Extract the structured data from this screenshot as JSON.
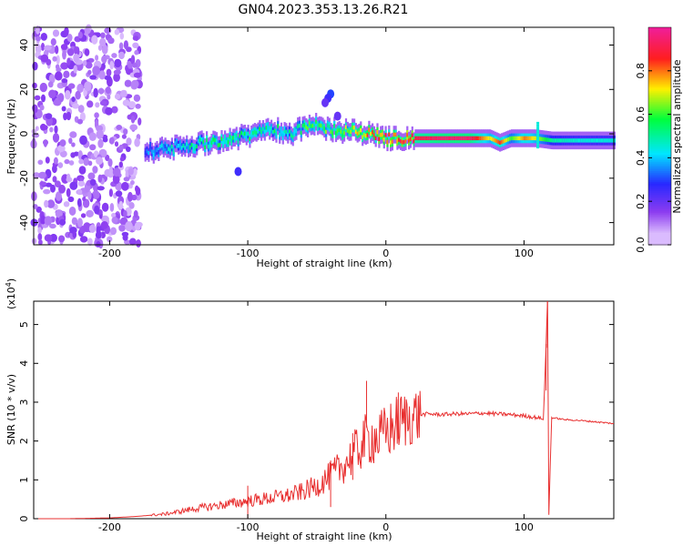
{
  "title": "GN04.2023.353.13.26.R21",
  "colors": {
    "line": "#e83030",
    "axes": "#000000",
    "background": "#ffffff"
  },
  "chart_data": [
    {
      "type": "heatmap",
      "title": "GN04.2023.353.13.26.R21",
      "xlabel": "Height of straight line (km)",
      "ylabel": "Frequency (Hz)",
      "xlim": [
        -255,
        165
      ],
      "ylim": [
        -50,
        48
      ],
      "x_ticks": [
        -200,
        -100,
        0,
        100
      ],
      "y_ticks": [
        40,
        20,
        0,
        -20,
        -40
      ],
      "grid": false,
      "colorbar": {
        "label": "Normalized spectral amplitude",
        "range": [
          0.0,
          1.0
        ],
        "ticks": [
          "0.0",
          "0.2",
          "0.4",
          "0.6",
          "0.8"
        ],
        "tick_values": [
          0.0,
          0.2,
          0.4,
          0.6,
          0.8
        ],
        "colormap": "rainbow (white → violet → blue → cyan → green → yellow → red → magenta)"
      },
      "ridge": [
        {
          "x": -175,
          "y": -8,
          "amp": 0.3
        },
        {
          "x": -150,
          "y": -6,
          "amp": 0.45
        },
        {
          "x": -120,
          "y": -3,
          "amp": 0.5
        },
        {
          "x": -100,
          "y": -1,
          "amp": 0.5
        },
        {
          "x": -85,
          "y": 3,
          "amp": 0.5
        },
        {
          "x": -70,
          "y": 0,
          "amp": 0.5
        },
        {
          "x": -55,
          "y": 4,
          "amp": 0.55
        },
        {
          "x": -40,
          "y": 2,
          "amp": 0.6
        },
        {
          "x": -25,
          "y": 1,
          "amp": 0.65
        },
        {
          "x": -10,
          "y": 0,
          "amp": 0.8
        },
        {
          "x": 0,
          "y": -2,
          "amp": 0.8
        },
        {
          "x": 20,
          "y": -2,
          "amp": 0.9
        },
        {
          "x": 40,
          "y": -2,
          "amp": 0.95
        },
        {
          "x": 60,
          "y": -2,
          "amp": 0.95
        },
        {
          "x": 75,
          "y": -2,
          "amp": 0.7
        },
        {
          "x": 82,
          "y": -4,
          "amp": 0.85
        },
        {
          "x": 90,
          "y": -2,
          "amp": 0.6
        },
        {
          "x": 100,
          "y": -2,
          "amp": 0.8
        },
        {
          "x": 108,
          "y": -2,
          "amp": 0.7
        },
        {
          "x": 120,
          "y": -3,
          "amp": 0.5
        },
        {
          "x": 140,
          "y": -3,
          "amp": 0.45
        },
        {
          "x": 165,
          "y": -3,
          "amp": 0.45
        }
      ]
    },
    {
      "type": "line",
      "xlabel": "Height of straight line (km)",
      "ylabel": "SNR (10 * v/v)",
      "y_multiplier_label": "(x10",
      "y_multiplier_exp": "4",
      "xlim": [
        -255,
        165
      ],
      "ylim": [
        0,
        5.6
      ],
      "x_ticks": [
        -200,
        -100,
        0,
        100
      ],
      "y_ticks": [
        0,
        1,
        2,
        3,
        4,
        5
      ],
      "grid": false,
      "series": [
        {
          "color": "#e83030",
          "x": [
            -255,
            -230,
            -200,
            -180,
            -160,
            -150,
            -140,
            -130,
            -120,
            -110,
            -100,
            -90,
            -80,
            -70,
            -60,
            -50,
            -40,
            -30,
            -20,
            -15,
            -10,
            -5,
            0,
            10,
            20,
            30,
            40,
            50,
            60,
            70,
            80,
            90,
            100,
            110,
            114,
            116,
            117,
            118,
            120,
            130,
            140,
            150,
            165
          ],
          "y": [
            0.0,
            0.0,
            0.02,
            0.06,
            0.12,
            0.18,
            0.25,
            0.3,
            0.35,
            0.4,
            0.45,
            0.5,
            0.55,
            0.6,
            0.7,
            0.85,
            1.1,
            1.4,
            1.8,
            2.0,
            2.1,
            2.05,
            2.2,
            2.5,
            2.65,
            2.7,
            2.68,
            2.7,
            2.7,
            2.72,
            2.7,
            2.68,
            2.65,
            2.6,
            2.55,
            4.5,
            5.6,
            0.1,
            2.6,
            2.55,
            2.53,
            2.5,
            2.45
          ]
        }
      ],
      "spikes": [
        {
          "x": -100,
          "y": 0.85
        },
        {
          "x": -40,
          "y": 1.5
        },
        {
          "x": -24,
          "y": 2.2
        },
        {
          "x": -14,
          "y": 3.55
        },
        {
          "x": 9,
          "y": 3.25
        },
        {
          "x": 116,
          "y": 4.5
        },
        {
          "x": 117,
          "y": 5.6
        }
      ]
    }
  ]
}
